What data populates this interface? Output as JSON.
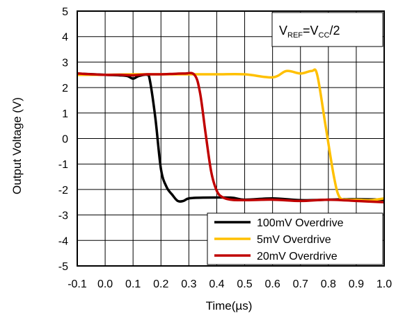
{
  "chart_data": {
    "type": "line",
    "xlabel": "Time(µs)",
    "ylabel": "Output  Voltage (V)",
    "xlim": [
      -0.1,
      1.0
    ],
    "ylim": [
      -5,
      5
    ],
    "x_ticks": [
      "-0.1",
      "0.0",
      "0.1",
      "0.2",
      "0.3",
      "0.4",
      "0.5",
      "0.6",
      "0.7",
      "0.8",
      "0.9",
      "1.0"
    ],
    "y_ticks": [
      "5",
      "4",
      "3",
      "2",
      "1",
      "0",
      "-1",
      "-2",
      "-3",
      "-4",
      "-5"
    ],
    "grid": true,
    "legend_position": "bottom-right",
    "annotation": {
      "v1": "V",
      "sub1": "REF",
      "eq": "=",
      "v2": "V",
      "sub2": "CC",
      "tail": "/2"
    },
    "series": [
      {
        "name": "100mV Overdrive",
        "color": "#000000",
        "points": [
          [
            -0.1,
            2.55
          ],
          [
            0.0,
            2.5
          ],
          [
            0.05,
            2.48
          ],
          [
            0.08,
            2.45
          ],
          [
            0.1,
            2.35
          ],
          [
            0.12,
            2.45
          ],
          [
            0.15,
            2.5
          ],
          [
            0.16,
            2.3
          ],
          [
            0.18,
            0.8
          ],
          [
            0.2,
            -1.2
          ],
          [
            0.22,
            -1.9
          ],
          [
            0.24,
            -2.2
          ],
          [
            0.26,
            -2.45
          ],
          [
            0.28,
            -2.45
          ],
          [
            0.3,
            -2.35
          ],
          [
            0.35,
            -2.32
          ],
          [
            0.45,
            -2.32
          ],
          [
            0.5,
            -2.4
          ],
          [
            0.6,
            -2.35
          ],
          [
            0.7,
            -2.42
          ],
          [
            0.8,
            -2.4
          ],
          [
            0.9,
            -2.38
          ],
          [
            1.0,
            -2.4
          ]
        ]
      },
      {
        "name": "5mV Overdrive",
        "color": "#FFC000",
        "points": [
          [
            -0.1,
            2.5
          ],
          [
            0.0,
            2.5
          ],
          [
            0.1,
            2.52
          ],
          [
            0.2,
            2.52
          ],
          [
            0.3,
            2.52
          ],
          [
            0.4,
            2.52
          ],
          [
            0.5,
            2.52
          ],
          [
            0.6,
            2.4
          ],
          [
            0.65,
            2.65
          ],
          [
            0.7,
            2.55
          ],
          [
            0.74,
            2.65
          ],
          [
            0.76,
            2.5
          ],
          [
            0.79,
            0.5
          ],
          [
            0.82,
            -1.5
          ],
          [
            0.84,
            -2.3
          ],
          [
            0.87,
            -2.4
          ],
          [
            0.9,
            -2.4
          ],
          [
            0.95,
            -2.42
          ],
          [
            1.0,
            -2.35
          ]
        ]
      },
      {
        "name": "20mV Overdrive",
        "color": "#C00000",
        "points": [
          [
            -0.1,
            2.55
          ],
          [
            0.0,
            2.5
          ],
          [
            0.05,
            2.5
          ],
          [
            0.1,
            2.48
          ],
          [
            0.15,
            2.52
          ],
          [
            0.2,
            2.52
          ],
          [
            0.28,
            2.55
          ],
          [
            0.32,
            2.5
          ],
          [
            0.34,
            1.8
          ],
          [
            0.36,
            0.2
          ],
          [
            0.38,
            -1.3
          ],
          [
            0.4,
            -2.05
          ],
          [
            0.42,
            -2.3
          ],
          [
            0.45,
            -2.4
          ],
          [
            0.5,
            -2.42
          ],
          [
            0.6,
            -2.4
          ],
          [
            0.7,
            -2.45
          ],
          [
            0.8,
            -2.4
          ],
          [
            0.9,
            -2.45
          ],
          [
            1.0,
            -2.5
          ]
        ]
      }
    ]
  }
}
